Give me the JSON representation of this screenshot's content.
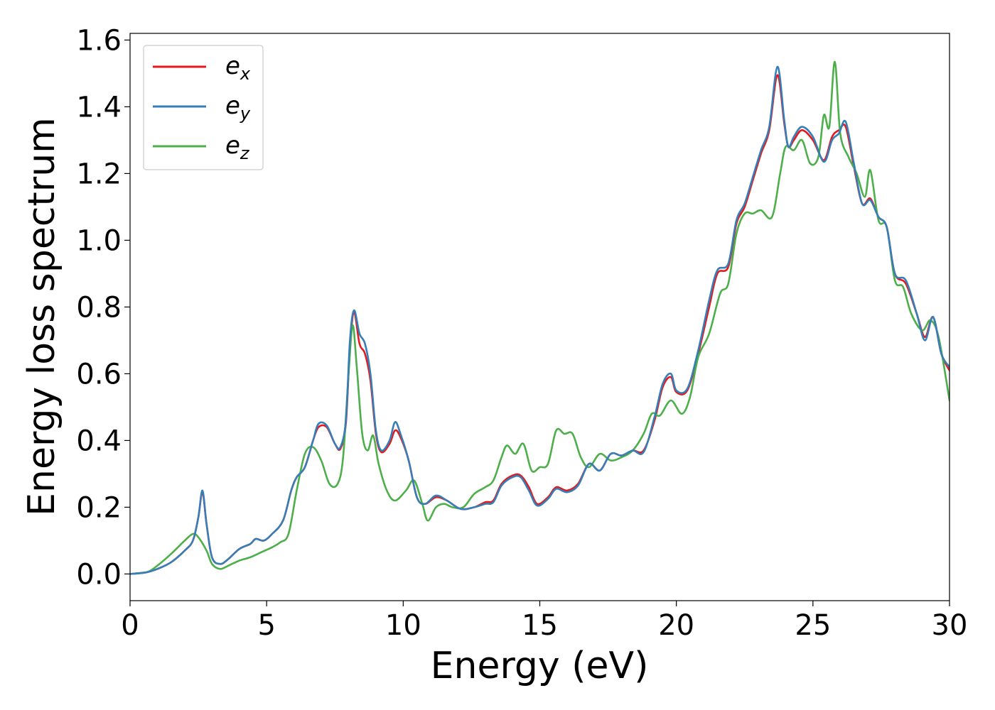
{
  "chart_data": {
    "type": "line",
    "xlabel": "Energy (eV)",
    "ylabel": "Energy loss spectrum",
    "xlim": [
      0,
      30
    ],
    "ylim": [
      -0.08,
      1.62
    ],
    "x_ticks": [
      "0",
      "5",
      "10",
      "15",
      "20",
      "25",
      "30"
    ],
    "y_ticks": [
      "0.0",
      "0.2",
      "0.4",
      "0.6",
      "0.8",
      "1.0",
      "1.2",
      "1.4",
      "1.6"
    ],
    "grid": false,
    "legend_position": "top-left",
    "series": [
      {
        "name": "e",
        "subscript": "x",
        "color": "#e41a1c",
        "points": [
          [
            0,
            0
          ],
          [
            0.6,
            0.005
          ],
          [
            1.0,
            0.015
          ],
          [
            1.5,
            0.035
          ],
          [
            2.0,
            0.07
          ],
          [
            2.3,
            0.1
          ],
          [
            2.5,
            0.17
          ],
          [
            2.65,
            0.245
          ],
          [
            2.8,
            0.15
          ],
          [
            3.0,
            0.05
          ],
          [
            3.3,
            0.03
          ],
          [
            3.6,
            0.045
          ],
          [
            4.0,
            0.075
          ],
          [
            4.4,
            0.09
          ],
          [
            4.6,
            0.105
          ],
          [
            4.9,
            0.1
          ],
          [
            5.2,
            0.12
          ],
          [
            5.6,
            0.16
          ],
          [
            5.9,
            0.25
          ],
          [
            6.1,
            0.29
          ],
          [
            6.4,
            0.32
          ],
          [
            6.7,
            0.4
          ],
          [
            6.9,
            0.44
          ],
          [
            7.2,
            0.44
          ],
          [
            7.5,
            0.39
          ],
          [
            7.7,
            0.375
          ],
          [
            7.9,
            0.45
          ],
          [
            8.05,
            0.68
          ],
          [
            8.2,
            0.785
          ],
          [
            8.4,
            0.69
          ],
          [
            8.6,
            0.66
          ],
          [
            8.8,
            0.58
          ],
          [
            9.0,
            0.42
          ],
          [
            9.2,
            0.365
          ],
          [
            9.5,
            0.39
          ],
          [
            9.7,
            0.43
          ],
          [
            9.9,
            0.41
          ],
          [
            10.2,
            0.34
          ],
          [
            10.5,
            0.23
          ],
          [
            10.8,
            0.21
          ],
          [
            11.2,
            0.23
          ],
          [
            11.6,
            0.22
          ],
          [
            12.1,
            0.195
          ],
          [
            12.6,
            0.2
          ],
          [
            13.0,
            0.215
          ],
          [
            13.3,
            0.22
          ],
          [
            13.6,
            0.27
          ],
          [
            14.0,
            0.295
          ],
          [
            14.3,
            0.295
          ],
          [
            14.6,
            0.26
          ],
          [
            14.9,
            0.21
          ],
          [
            15.3,
            0.23
          ],
          [
            15.6,
            0.26
          ],
          [
            16.0,
            0.25
          ],
          [
            16.4,
            0.27
          ],
          [
            16.8,
            0.33
          ],
          [
            17.2,
            0.31
          ],
          [
            17.6,
            0.36
          ],
          [
            18.0,
            0.355
          ],
          [
            18.4,
            0.37
          ],
          [
            18.8,
            0.37
          ],
          [
            19.2,
            0.46
          ],
          [
            19.5,
            0.56
          ],
          [
            19.8,
            0.59
          ],
          [
            20.0,
            0.545
          ],
          [
            20.4,
            0.55
          ],
          [
            20.8,
            0.66
          ],
          [
            21.2,
            0.8
          ],
          [
            21.5,
            0.9
          ],
          [
            21.9,
            0.92
          ],
          [
            22.2,
            1.05
          ],
          [
            22.5,
            1.1
          ],
          [
            22.8,
            1.18
          ],
          [
            23.1,
            1.26
          ],
          [
            23.4,
            1.33
          ],
          [
            23.7,
            1.495
          ],
          [
            23.95,
            1.35
          ],
          [
            24.1,
            1.28
          ],
          [
            24.3,
            1.3
          ],
          [
            24.6,
            1.33
          ],
          [
            25.0,
            1.3
          ],
          [
            25.4,
            1.24
          ],
          [
            25.7,
            1.31
          ],
          [
            25.95,
            1.33
          ],
          [
            26.2,
            1.34
          ],
          [
            26.5,
            1.22
          ],
          [
            26.8,
            1.11
          ],
          [
            27.1,
            1.125
          ],
          [
            27.4,
            1.07
          ],
          [
            27.7,
            1.04
          ],
          [
            28.0,
            0.9
          ],
          [
            28.4,
            0.87
          ],
          [
            28.8,
            0.78
          ],
          [
            29.1,
            0.71
          ],
          [
            29.4,
            0.77
          ],
          [
            29.7,
            0.66
          ],
          [
            30.0,
            0.61
          ]
        ]
      },
      {
        "name": "e",
        "subscript": "y",
        "color": "#377eb8",
        "points": [
          [
            0,
            0
          ],
          [
            0.6,
            0.005
          ],
          [
            1.0,
            0.015
          ],
          [
            1.5,
            0.035
          ],
          [
            2.0,
            0.07
          ],
          [
            2.3,
            0.1
          ],
          [
            2.5,
            0.17
          ],
          [
            2.65,
            0.25
          ],
          [
            2.8,
            0.15
          ],
          [
            3.0,
            0.05
          ],
          [
            3.3,
            0.03
          ],
          [
            3.6,
            0.045
          ],
          [
            4.0,
            0.075
          ],
          [
            4.4,
            0.09
          ],
          [
            4.6,
            0.105
          ],
          [
            4.9,
            0.1
          ],
          [
            5.2,
            0.12
          ],
          [
            5.6,
            0.16
          ],
          [
            5.9,
            0.25
          ],
          [
            6.1,
            0.29
          ],
          [
            6.4,
            0.32
          ],
          [
            6.7,
            0.4
          ],
          [
            6.9,
            0.45
          ],
          [
            7.2,
            0.445
          ],
          [
            7.5,
            0.39
          ],
          [
            7.7,
            0.38
          ],
          [
            7.9,
            0.46
          ],
          [
            8.05,
            0.7
          ],
          [
            8.2,
            0.79
          ],
          [
            8.4,
            0.72
          ],
          [
            8.6,
            0.69
          ],
          [
            8.8,
            0.6
          ],
          [
            9.0,
            0.43
          ],
          [
            9.2,
            0.37
          ],
          [
            9.5,
            0.4
          ],
          [
            9.7,
            0.455
          ],
          [
            9.9,
            0.42
          ],
          [
            10.2,
            0.34
          ],
          [
            10.5,
            0.23
          ],
          [
            10.8,
            0.21
          ],
          [
            11.2,
            0.235
          ],
          [
            11.6,
            0.22
          ],
          [
            12.1,
            0.195
          ],
          [
            12.6,
            0.2
          ],
          [
            13.0,
            0.21
          ],
          [
            13.3,
            0.215
          ],
          [
            13.6,
            0.265
          ],
          [
            14.0,
            0.29
          ],
          [
            14.3,
            0.29
          ],
          [
            14.6,
            0.25
          ],
          [
            14.9,
            0.205
          ],
          [
            15.3,
            0.225
          ],
          [
            15.6,
            0.255
          ],
          [
            16.0,
            0.245
          ],
          [
            16.4,
            0.265
          ],
          [
            16.8,
            0.33
          ],
          [
            17.2,
            0.31
          ],
          [
            17.6,
            0.36
          ],
          [
            18.0,
            0.355
          ],
          [
            18.4,
            0.37
          ],
          [
            18.8,
            0.365
          ],
          [
            19.2,
            0.47
          ],
          [
            19.5,
            0.57
          ],
          [
            19.8,
            0.6
          ],
          [
            20.0,
            0.55
          ],
          [
            20.4,
            0.555
          ],
          [
            20.8,
            0.67
          ],
          [
            21.2,
            0.82
          ],
          [
            21.5,
            0.91
          ],
          [
            21.9,
            0.93
          ],
          [
            22.2,
            1.06
          ],
          [
            22.5,
            1.11
          ],
          [
            22.8,
            1.19
          ],
          [
            23.1,
            1.27
          ],
          [
            23.4,
            1.34
          ],
          [
            23.7,
            1.52
          ],
          [
            23.95,
            1.36
          ],
          [
            24.1,
            1.28
          ],
          [
            24.3,
            1.31
          ],
          [
            24.6,
            1.34
          ],
          [
            25.0,
            1.31
          ],
          [
            25.4,
            1.235
          ],
          [
            25.7,
            1.3
          ],
          [
            25.95,
            1.32
          ],
          [
            26.2,
            1.355
          ],
          [
            26.5,
            1.23
          ],
          [
            26.8,
            1.11
          ],
          [
            27.1,
            1.12
          ],
          [
            27.4,
            1.07
          ],
          [
            27.7,
            1.04
          ],
          [
            28.0,
            0.9
          ],
          [
            28.4,
            0.88
          ],
          [
            28.8,
            0.78
          ],
          [
            29.1,
            0.7
          ],
          [
            29.4,
            0.77
          ],
          [
            29.7,
            0.66
          ],
          [
            30.0,
            0.62
          ]
        ]
      },
      {
        "name": "e",
        "subscript": "z",
        "color": "#4daf4a",
        "points": [
          [
            0,
            0
          ],
          [
            0.6,
            0.005
          ],
          [
            1.0,
            0.025
          ],
          [
            1.5,
            0.06
          ],
          [
            2.0,
            0.1
          ],
          [
            2.3,
            0.12
          ],
          [
            2.5,
            0.11
          ],
          [
            2.8,
            0.07
          ],
          [
            3.0,
            0.03
          ],
          [
            3.3,
            0.015
          ],
          [
            3.6,
            0.025
          ],
          [
            4.0,
            0.04
          ],
          [
            4.4,
            0.05
          ],
          [
            4.8,
            0.065
          ],
          [
            5.2,
            0.08
          ],
          [
            5.5,
            0.095
          ],
          [
            5.8,
            0.12
          ],
          [
            6.1,
            0.25
          ],
          [
            6.4,
            0.36
          ],
          [
            6.7,
            0.38
          ],
          [
            7.0,
            0.34
          ],
          [
            7.3,
            0.27
          ],
          [
            7.6,
            0.27
          ],
          [
            7.8,
            0.35
          ],
          [
            8.0,
            0.6
          ],
          [
            8.15,
            0.745
          ],
          [
            8.3,
            0.62
          ],
          [
            8.5,
            0.42
          ],
          [
            8.7,
            0.37
          ],
          [
            8.9,
            0.415
          ],
          [
            9.1,
            0.33
          ],
          [
            9.4,
            0.25
          ],
          [
            9.7,
            0.22
          ],
          [
            10.1,
            0.25
          ],
          [
            10.4,
            0.28
          ],
          [
            10.7,
            0.21
          ],
          [
            10.9,
            0.16
          ],
          [
            11.2,
            0.2
          ],
          [
            11.5,
            0.21
          ],
          [
            11.8,
            0.2
          ],
          [
            12.2,
            0.2
          ],
          [
            12.6,
            0.24
          ],
          [
            13.0,
            0.26
          ],
          [
            13.3,
            0.28
          ],
          [
            13.6,
            0.35
          ],
          [
            13.8,
            0.385
          ],
          [
            14.1,
            0.36
          ],
          [
            14.4,
            0.39
          ],
          [
            14.7,
            0.31
          ],
          [
            15.0,
            0.32
          ],
          [
            15.3,
            0.33
          ],
          [
            15.6,
            0.43
          ],
          [
            15.9,
            0.42
          ],
          [
            16.2,
            0.42
          ],
          [
            16.5,
            0.35
          ],
          [
            16.8,
            0.32
          ],
          [
            17.2,
            0.36
          ],
          [
            17.6,
            0.34
          ],
          [
            18.0,
            0.35
          ],
          [
            18.4,
            0.37
          ],
          [
            18.8,
            0.42
          ],
          [
            19.1,
            0.48
          ],
          [
            19.4,
            0.475
          ],
          [
            19.8,
            0.52
          ],
          [
            20.2,
            0.48
          ],
          [
            20.5,
            0.53
          ],
          [
            20.8,
            0.65
          ],
          [
            21.2,
            0.72
          ],
          [
            21.6,
            0.84
          ],
          [
            21.9,
            0.87
          ],
          [
            22.2,
            1.02
          ],
          [
            22.5,
            1.08
          ],
          [
            22.8,
            1.08
          ],
          [
            23.1,
            1.09
          ],
          [
            23.5,
            1.07
          ],
          [
            23.8,
            1.2
          ],
          [
            24.0,
            1.28
          ],
          [
            24.3,
            1.27
          ],
          [
            24.6,
            1.3
          ],
          [
            24.9,
            1.23
          ],
          [
            25.2,
            1.25
          ],
          [
            25.4,
            1.375
          ],
          [
            25.6,
            1.34
          ],
          [
            25.8,
            1.535
          ],
          [
            26.0,
            1.32
          ],
          [
            26.3,
            1.25
          ],
          [
            26.6,
            1.2
          ],
          [
            26.9,
            1.13
          ],
          [
            27.1,
            1.21
          ],
          [
            27.4,
            1.06
          ],
          [
            27.7,
            1.04
          ],
          [
            28.0,
            0.88
          ],
          [
            28.3,
            0.86
          ],
          [
            28.6,
            0.78
          ],
          [
            29.0,
            0.73
          ],
          [
            29.3,
            0.76
          ],
          [
            29.6,
            0.71
          ],
          [
            30.0,
            0.52
          ]
        ]
      }
    ]
  }
}
